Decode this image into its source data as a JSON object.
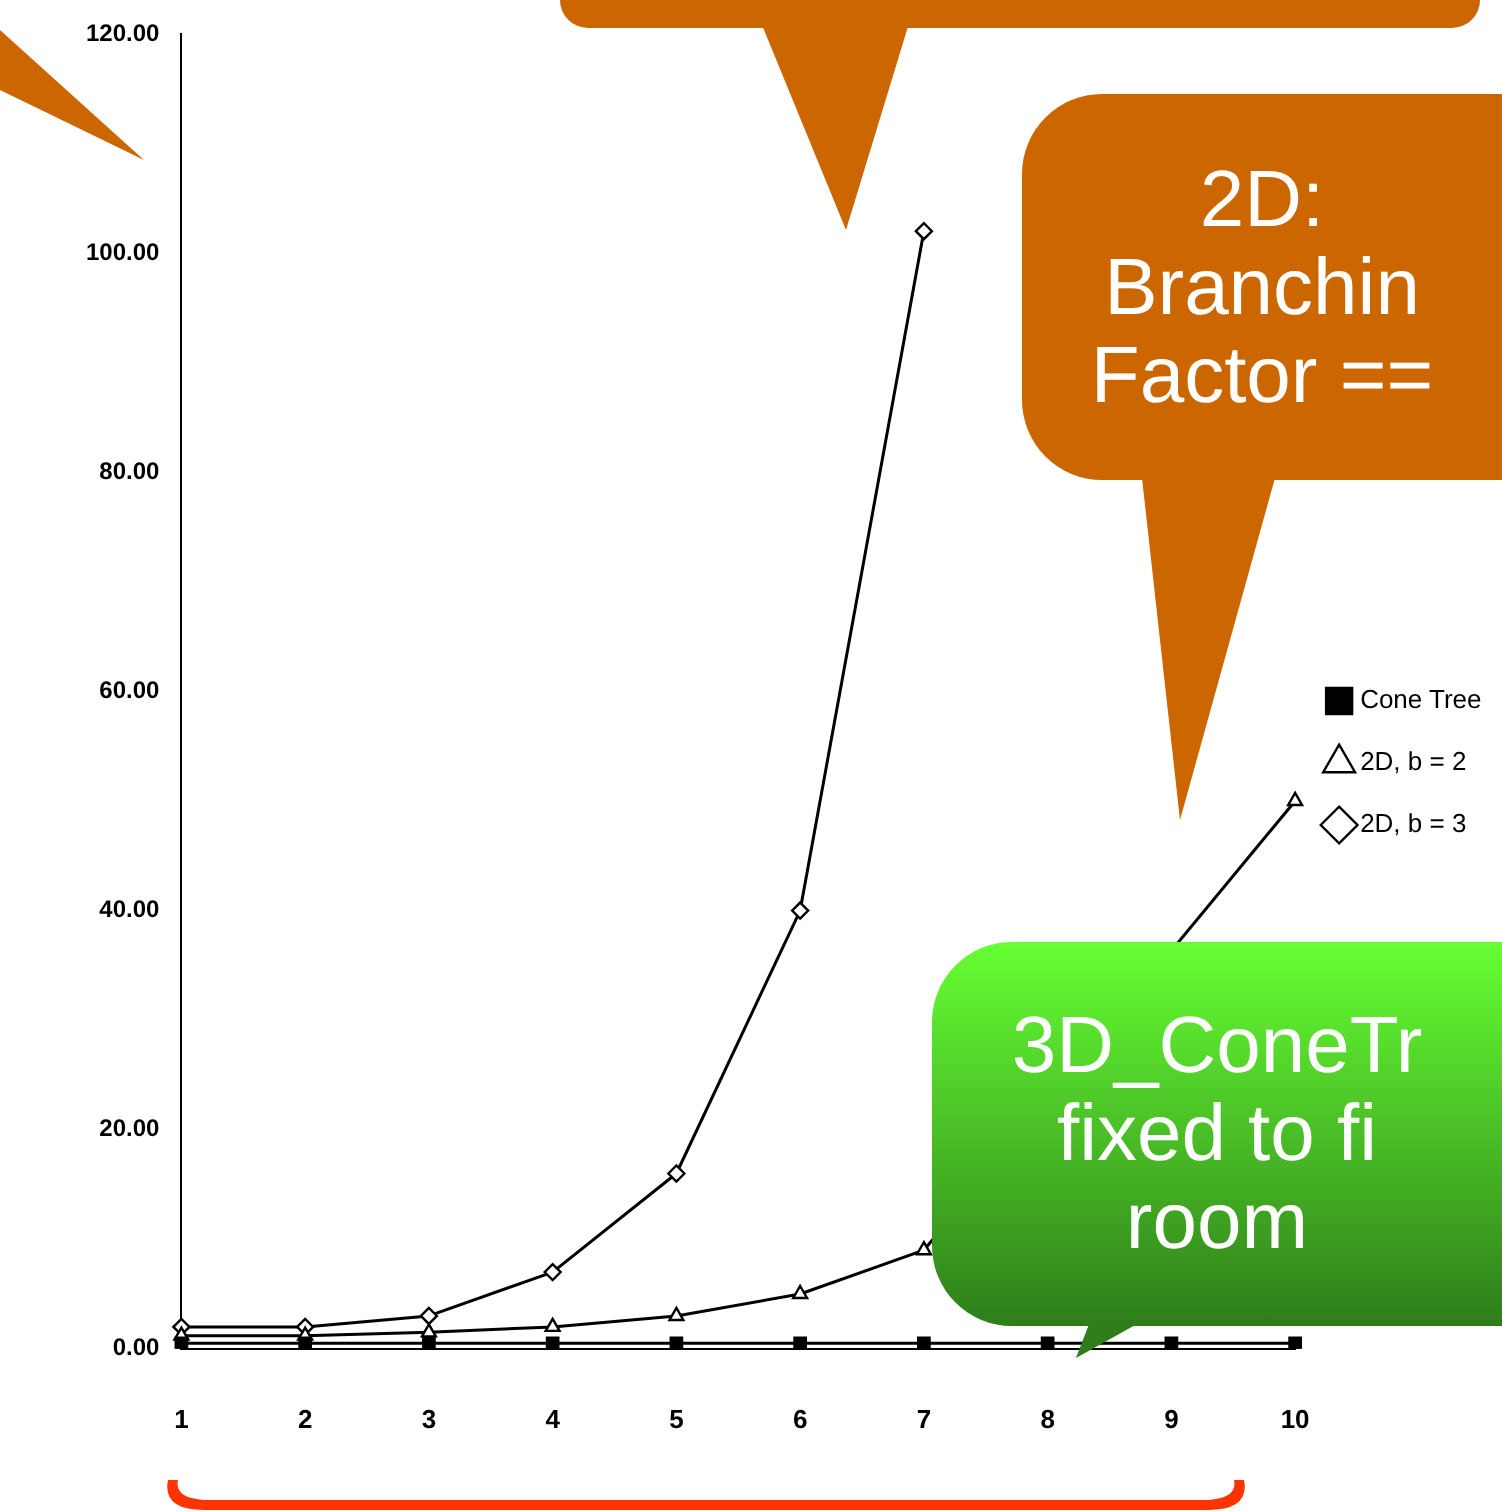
{
  "chart_data": {
    "type": "line",
    "categories": [
      "1",
      "2",
      "3",
      "4",
      "5",
      "6",
      "7",
      "8",
      "9",
      "10"
    ],
    "series": [
      {
        "name": "Cone Tree",
        "color": "#000000",
        "marker": "square",
        "values": [
          0.5,
          0.5,
          0.5,
          0.5,
          0.5,
          0.5,
          0.5,
          0.5,
          0.5,
          0.5
        ]
      },
      {
        "name": "2D, b = 2",
        "color": "#000000",
        "marker": "triangle",
        "values": [
          1.2,
          1.2,
          1.5,
          2,
          3,
          5,
          9,
          null,
          null,
          50
        ]
      },
      {
        "name": "2D, b = 3",
        "color": "#000000",
        "marker": "diamond",
        "values": [
          2,
          2,
          3,
          7,
          16,
          40,
          102,
          null,
          null,
          null
        ]
      }
    ],
    "ylim": [
      0,
      120
    ],
    "yticks": [
      {
        "value": 0,
        "label": "0.00"
      },
      {
        "value": 20,
        "label": "20.00"
      },
      {
        "value": 40,
        "label": "40.00"
      },
      {
        "value": 60,
        "label": "60.00"
      },
      {
        "value": 80,
        "label": "80.00"
      },
      {
        "value": 100,
        "label": "100.00"
      },
      {
        "value": 120,
        "label": "120.00"
      }
    ],
    "grid": false,
    "legend": "right",
    "line_style": "solid",
    "annotations": [
      "2D: Branchin Factor ==",
      "3D_ConeTr fixed to fi room"
    ]
  }
}
